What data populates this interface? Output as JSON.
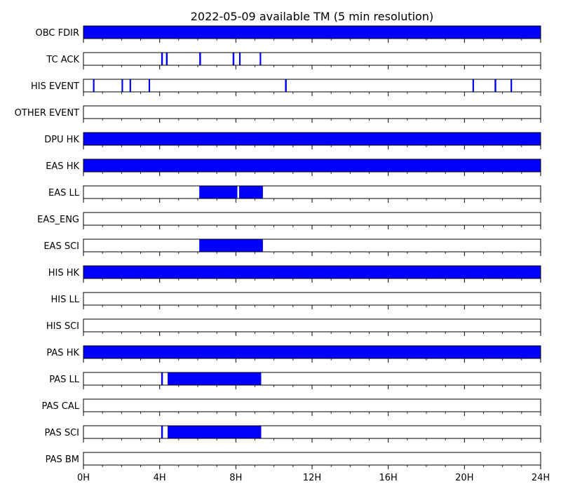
{
  "chart_data": {
    "type": "timeline",
    "title": "2022-05-09 available TM (5 min resolution)",
    "x_unit": "hours",
    "xlim": [
      0,
      24
    ],
    "x_ticks": [
      {
        "value": 0,
        "label": "0H"
      },
      {
        "value": 4,
        "label": "4H"
      },
      {
        "value": 8,
        "label": "8H"
      },
      {
        "value": 12,
        "label": "12H"
      },
      {
        "value": 16,
        "label": "16H"
      },
      {
        "value": 20,
        "label": "20H"
      },
      {
        "value": 24,
        "label": "24H"
      }
    ],
    "minor_tick_step_hours": 1,
    "fill_color": "#0000ff",
    "rows": [
      {
        "label": "OBC FDIR",
        "intervals": [
          [
            0,
            24
          ]
        ]
      },
      {
        "label": "TC ACK",
        "intervals": [
          [
            4.08,
            4.17
          ],
          [
            4.33,
            4.42
          ],
          [
            6.08,
            6.17
          ],
          [
            7.83,
            7.92
          ],
          [
            8.17,
            8.25
          ],
          [
            9.25,
            9.33
          ]
        ]
      },
      {
        "label": "HIS EVENT",
        "intervals": [
          [
            0.5,
            0.58
          ],
          [
            2.0,
            2.08
          ],
          [
            2.42,
            2.5
          ],
          [
            3.42,
            3.5
          ],
          [
            10.58,
            10.67
          ],
          [
            20.42,
            20.5
          ],
          [
            21.58,
            21.67
          ],
          [
            22.42,
            22.5
          ]
        ]
      },
      {
        "label": "OTHER EVENT",
        "intervals": []
      },
      {
        "label": "DPU HK",
        "intervals": [
          [
            0,
            24
          ]
        ]
      },
      {
        "label": "EAS HK",
        "intervals": [
          [
            0,
            24
          ]
        ]
      },
      {
        "label": "EAS LL",
        "intervals": [
          [
            6.08,
            8.08
          ],
          [
            8.17,
            9.42
          ]
        ]
      },
      {
        "label": "EAS_ENG",
        "intervals": []
      },
      {
        "label": "EAS SCI",
        "intervals": [
          [
            6.08,
            9.42
          ]
        ]
      },
      {
        "label": "HIS HK",
        "intervals": [
          [
            0,
            24
          ]
        ]
      },
      {
        "label": "HIS LL",
        "intervals": []
      },
      {
        "label": "HIS SCI",
        "intervals": []
      },
      {
        "label": "PAS HK",
        "intervals": [
          [
            0,
            24
          ]
        ]
      },
      {
        "label": "PAS LL",
        "intervals": [
          [
            4.08,
            4.17
          ],
          [
            4.42,
            9.33
          ]
        ]
      },
      {
        "label": "PAS CAL",
        "intervals": []
      },
      {
        "label": "PAS SCI",
        "intervals": [
          [
            4.08,
            4.17
          ],
          [
            4.42,
            9.33
          ]
        ]
      },
      {
        "label": "PAS BM",
        "intervals": []
      }
    ]
  }
}
